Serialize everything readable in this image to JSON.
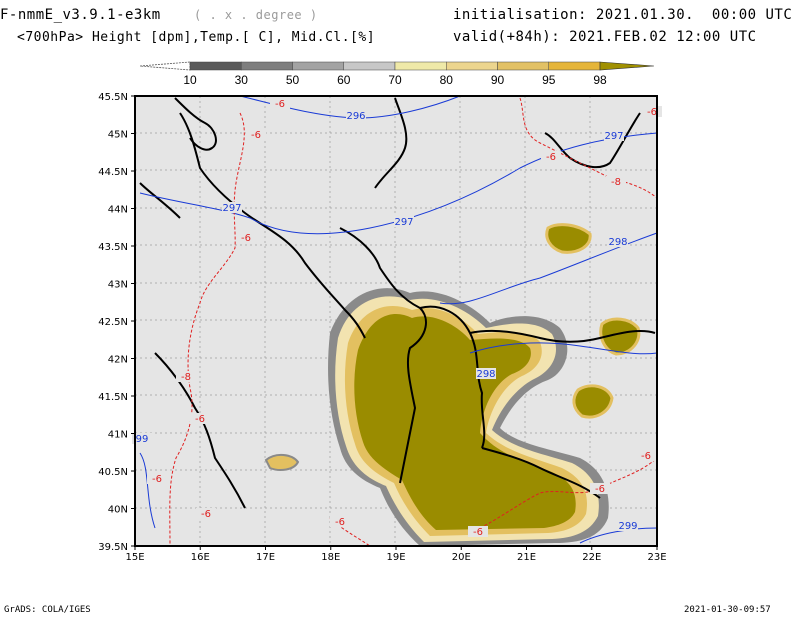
{
  "header": {
    "model": "F-nmmE_v3.9.1-e3km",
    "unit_note": "( . x . degree )",
    "subtitle": "<700hPa> Height [dpm],Temp.[ C], Mid.Cl.[%]",
    "init": "initialisation: 2021.01.30.  00:00 UTC",
    "valid": "valid(+84h): 2021.FEB.02 12:00 UTC"
  },
  "colorbar": {
    "labels": [
      "10",
      "30",
      "50",
      "60",
      "70",
      "80",
      "90",
      "95",
      "98"
    ],
    "colors": [
      "#5a5a5a",
      "#7e7e7e",
      "#a3a3a3",
      "#c7c7c7",
      "#efe9a8",
      "#ecd58e",
      "#e2c165",
      "#e5b53a",
      "#a09000"
    ]
  },
  "map": {
    "lat_ticks": [
      "45.5N",
      "45N",
      "44.5N",
      "44N",
      "43.5N",
      "43N",
      "42.5N",
      "42N",
      "41.5N",
      "41N",
      "40.5N",
      "40N",
      "39.5N"
    ],
    "lon_ticks": [
      "15E",
      "16E",
      "17E",
      "18E",
      "19E",
      "20E",
      "21E",
      "22E",
      "23E"
    ],
    "height_contours": [
      "296",
      "297",
      "297",
      "297",
      "298",
      "298",
      "299",
      "99"
    ],
    "temp_contours": [
      "-6",
      "-6",
      "-6",
      "-6",
      "-8",
      "-8",
      "-6",
      "-6",
      "-6",
      "-6",
      "-6",
      "-6",
      "-6",
      "-6"
    ],
    "colors": {
      "background": "#e5e5e5",
      "cloud_dark": "#9a8c00",
      "cloud_mid": "#e3c060",
      "cloud_light": "#f2e3b0",
      "cloud_grey": "#8a8a8a",
      "height_line": "#1a3bd6",
      "temp_line": "#e02020",
      "coast": "#000000"
    }
  },
  "footer": {
    "left": "GrADS: COLA/IGES",
    "right": "2021-01-30-09:57"
  }
}
